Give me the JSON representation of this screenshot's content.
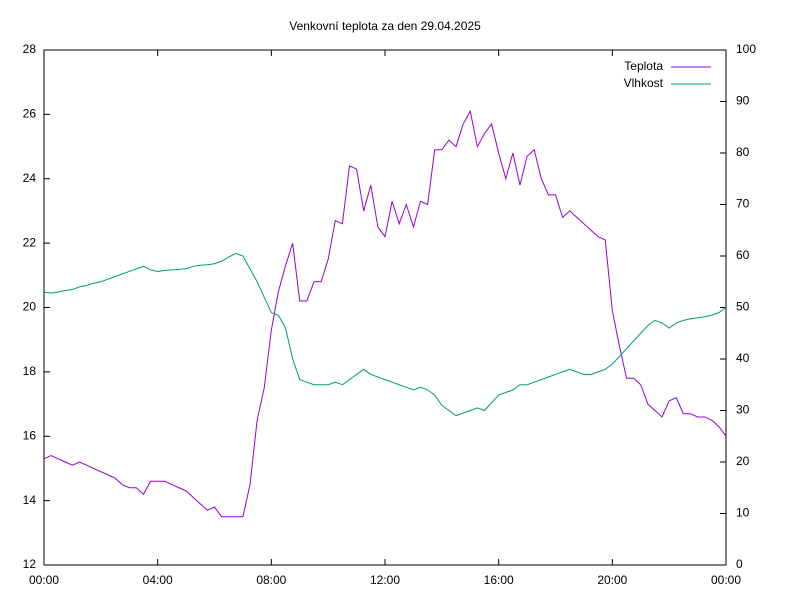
{
  "chart_data": {
    "type": "line",
    "title": "Venkovní teplota za den 29.04.2025",
    "x": [
      0,
      0.25,
      0.5,
      0.75,
      1,
      1.25,
      1.5,
      1.75,
      2,
      2.25,
      2.5,
      2.75,
      3,
      3.25,
      3.5,
      3.75,
      4,
      4.25,
      4.5,
      4.75,
      5,
      5.25,
      5.5,
      5.75,
      6,
      6.25,
      6.5,
      6.75,
      7,
      7.25,
      7.5,
      7.75,
      8,
      8.25,
      8.5,
      8.75,
      9,
      9.25,
      9.5,
      9.75,
      10,
      10.25,
      10.5,
      10.75,
      11,
      11.25,
      11.5,
      11.75,
      12,
      12.25,
      12.5,
      12.75,
      13,
      13.25,
      13.5,
      13.75,
      14,
      14.25,
      14.5,
      14.75,
      15,
      15.25,
      15.5,
      15.75,
      16,
      16.25,
      16.5,
      16.75,
      17,
      17.25,
      17.5,
      17.75,
      18,
      18.25,
      18.5,
      18.75,
      19,
      19.25,
      19.5,
      19.75,
      20,
      20.25,
      20.5,
      20.75,
      21,
      21.25,
      21.5,
      21.75,
      22,
      22.25,
      22.5,
      22.75,
      23,
      23.25,
      23.5,
      23.75,
      24
    ],
    "series": [
      {
        "name": "Teplota",
        "color": "#9400d3",
        "values": [
          15.3,
          15.4,
          15.3,
          15.2,
          15.1,
          15.2,
          15.1,
          15.0,
          14.9,
          14.8,
          14.7,
          14.5,
          14.4,
          14.4,
          14.2,
          14.6,
          14.6,
          14.6,
          14.5,
          14.4,
          14.3,
          14.1,
          13.9,
          13.7,
          13.8,
          13.5,
          13.5,
          13.5,
          13.5,
          14.5,
          16.5,
          17.5,
          19.3,
          20.5,
          21.3,
          22.0,
          20.2,
          20.2,
          20.8,
          20.8,
          21.5,
          22.7,
          22.6,
          24.4,
          24.3,
          23.0,
          23.8,
          22.5,
          22.2,
          23.3,
          22.6,
          23.2,
          22.5,
          23.3,
          23.2,
          24.9,
          24.9,
          25.2,
          25.0,
          25.7,
          26.1,
          25.0,
          25.4,
          25.7,
          24.8,
          24.0,
          24.8,
          23.8,
          24.7,
          24.9,
          24.0,
          23.5,
          23.5,
          22.8,
          23.0,
          22.8,
          22.6,
          22.4,
          22.2,
          22.1,
          19.9,
          18.8,
          17.8,
          17.8,
          17.6,
          17.0,
          16.8,
          16.6,
          17.1,
          17.2,
          16.7,
          16.7,
          16.6,
          16.6,
          16.5,
          16.3,
          16.0
        ]
      },
      {
        "name": "Vlhkost",
        "color": "#009e73",
        "axis": "y2",
        "values": [
          53,
          52.8,
          53,
          53.3,
          53.5,
          54,
          54.3,
          54.7,
          55,
          55.5,
          56,
          56.5,
          57,
          57.5,
          58,
          57.3,
          57,
          57.2,
          57.3,
          57.4,
          57.5,
          58,
          58.2,
          58.3,
          58.5,
          59,
          59.8,
          60.5,
          60,
          57.5,
          55,
          52,
          49,
          48.5,
          46,
          40,
          36,
          35.5,
          35,
          35,
          35,
          35.5,
          35,
          36,
          37,
          38,
          37,
          36.5,
          36,
          35.5,
          35,
          34.5,
          34,
          34.5,
          34,
          33,
          31,
          30,
          29,
          29.5,
          30,
          30.5,
          30,
          31.5,
          33,
          33.5,
          34,
          35,
          35,
          35.5,
          36,
          36.5,
          37,
          37.5,
          38,
          37.5,
          37,
          37,
          37.5,
          38,
          39,
          40.5,
          42,
          43.5,
          45,
          46.5,
          47.5,
          47,
          46,
          47,
          47.5,
          47.8,
          48,
          48.2,
          48.5,
          49,
          50
        ]
      }
    ],
    "xlim": [
      0,
      24
    ],
    "xticks": [
      {
        "value": 0,
        "label": "00:00"
      },
      {
        "value": 4,
        "label": "04:00"
      },
      {
        "value": 8,
        "label": "08:00"
      },
      {
        "value": 12,
        "label": "12:00"
      },
      {
        "value": 16,
        "label": "16:00"
      },
      {
        "value": 20,
        "label": "20:00"
      },
      {
        "value": 24,
        "label": "00:00"
      }
    ],
    "ylim": [
      12,
      28
    ],
    "yticks": [
      12,
      14,
      16,
      18,
      20,
      22,
      24,
      26,
      28
    ],
    "y2lim": [
      0,
      100
    ],
    "y2ticks": [
      0,
      10,
      20,
      30,
      40,
      50,
      60,
      70,
      80,
      90,
      100
    ],
    "legend": "top-right"
  }
}
